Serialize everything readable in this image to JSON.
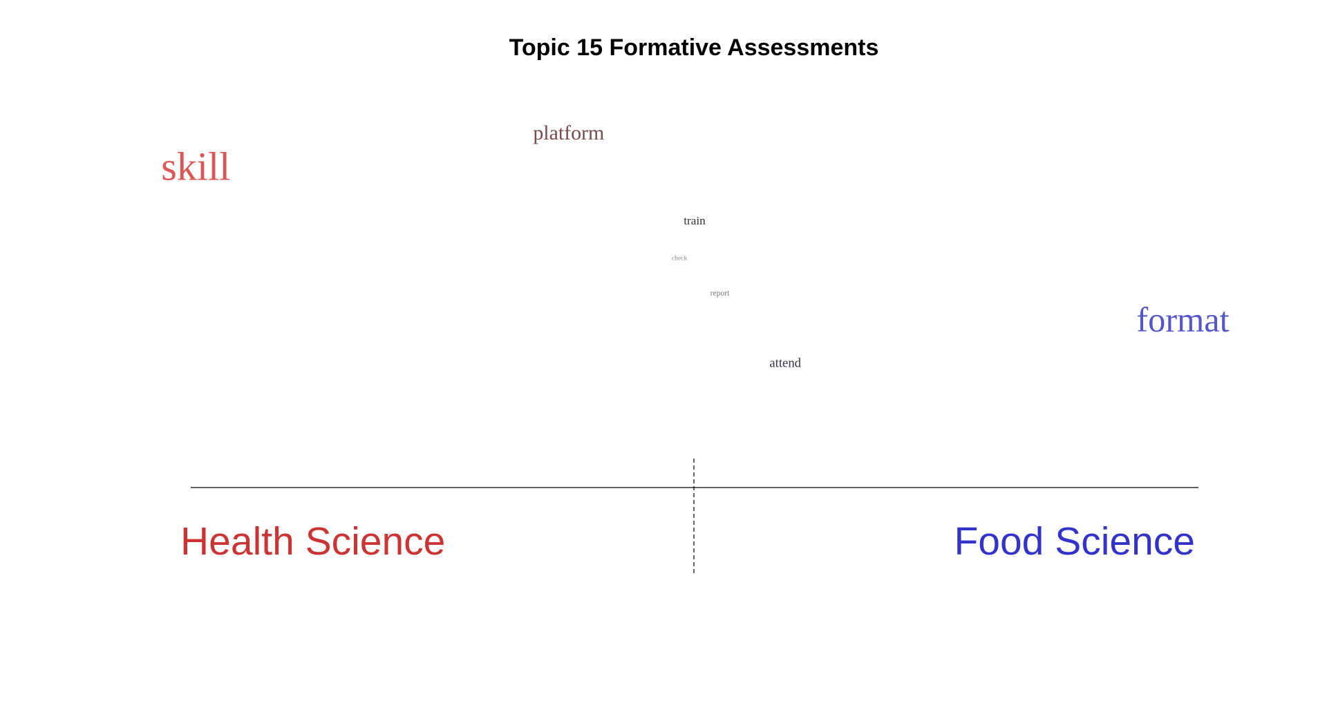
{
  "chart_data": {
    "type": "scatter",
    "title": "Topic 15 Formative Assessments",
    "left_label": "Health Science",
    "right_label": "Food Science",
    "left_color": "#cc3333",
    "right_color": "#3333cc",
    "xlim": [
      -1,
      1
    ],
    "words": [
      {
        "text": "platform",
        "x": -0.25,
        "y": 0.78,
        "weight": 0.45,
        "color": "#7a4a4a"
      },
      {
        "text": "skill",
        "x": -0.99,
        "y": 0.69,
        "weight": 1.0,
        "color": "#dd5555"
      },
      {
        "text": "train",
        "x": 0.0,
        "y": 0.59,
        "weight": 0.2,
        "color": "#333333"
      },
      {
        "text": "check",
        "x": -0.03,
        "y": 0.51,
        "weight": 0.05,
        "color": "#888888"
      },
      {
        "text": "report",
        "x": 0.05,
        "y": 0.43,
        "weight": 0.09,
        "color": "#777777"
      },
      {
        "text": "format",
        "x": 0.99,
        "y": 0.35,
        "weight": 0.85,
        "color": "#5555cc"
      },
      {
        "text": "attend",
        "x": 0.18,
        "y": 0.27,
        "weight": 0.23,
        "color": "#333344"
      }
    ]
  }
}
